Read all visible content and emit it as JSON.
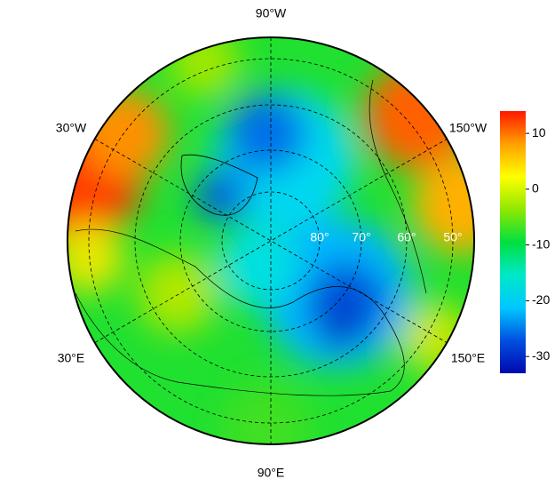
{
  "map": {
    "meridian_labels": [
      "90°W",
      "30°W",
      "150°W",
      "30°E",
      "150°E",
      "90°E"
    ],
    "latitude_labels": [
      "80°",
      "70°",
      "60°",
      "50°"
    ]
  },
  "colorbar": {
    "range": [
      -33,
      14
    ],
    "ticks": [
      10,
      0,
      -10,
      -20,
      -30
    ],
    "colors": [
      "#0008b0",
      "#0050e0",
      "#00c8ff",
      "#00e8c8",
      "#00e040",
      "#90e800",
      "#ffff00",
      "#ffa000",
      "#ff1800"
    ]
  }
}
